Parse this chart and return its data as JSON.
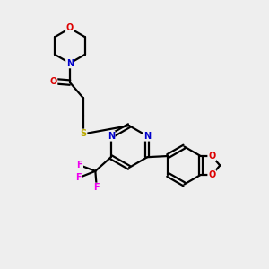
{
  "bg_color": "#eeeeee",
  "atom_colors": {
    "C": "#000000",
    "N": "#0000cc",
    "O": "#dd0000",
    "S": "#bbaa00",
    "F": "#ee00ee"
  },
  "bond_color": "#000000",
  "bond_width": 1.6,
  "figsize": [
    3.0,
    3.0
  ],
  "dpi": 100
}
